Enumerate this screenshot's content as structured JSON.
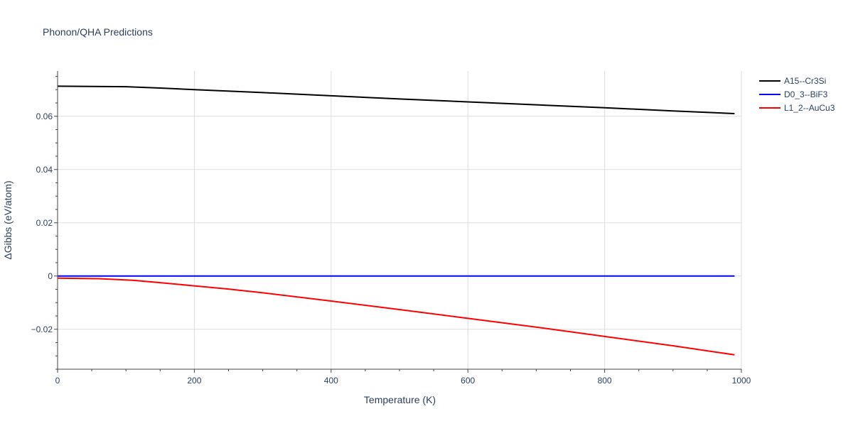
{
  "chart_data": {
    "type": "line",
    "title": "Phonon/QHA Predictions",
    "xlabel": "Temperature (K)",
    "ylabel": "ΔGibbs (eV/atom)",
    "xlim": [
      0,
      1000
    ],
    "ylim": [
      -0.035,
      0.077
    ],
    "x_ticks": [
      0,
      200,
      400,
      600,
      800,
      1000
    ],
    "y_ticks": [
      -0.02,
      0,
      0.02,
      0.04,
      0.06
    ],
    "x_tick_labels": [
      "0",
      "200",
      "400",
      "600",
      "800",
      "1000"
    ],
    "y_tick_labels": [
      "−0.02",
      "0",
      "0.02",
      "0.04",
      "0.06"
    ],
    "grid": true,
    "legend": "top-right",
    "series": [
      {
        "name": "A15--Cr3Si",
        "color": "#000000",
        "x": [
          0,
          50,
          100,
          150,
          200,
          300,
          400,
          500,
          600,
          700,
          800,
          900,
          990
        ],
        "y": [
          0.0713,
          0.0712,
          0.0711,
          0.0706,
          0.07,
          0.0689,
          0.0677,
          0.0665,
          0.0654,
          0.0643,
          0.0632,
          0.062,
          0.061
        ]
      },
      {
        "name": "D0_3--BiF3",
        "color": "#0000ff",
        "x": [
          0,
          100,
          200,
          300,
          400,
          500,
          600,
          700,
          800,
          900,
          990
        ],
        "y": [
          0,
          0,
          0,
          0,
          0,
          0,
          0,
          0,
          0,
          0,
          0
        ]
      },
      {
        "name": "L1_2--AuCu3",
        "color": "#ff0000",
        "x": [
          0,
          60,
          110,
          150,
          200,
          250,
          300,
          400,
          500,
          600,
          700,
          800,
          900,
          990
        ],
        "y": [
          -0.0008,
          -0.001,
          -0.0016,
          -0.0025,
          -0.0037,
          -0.0049,
          -0.0063,
          -0.0094,
          -0.0126,
          -0.0159,
          -0.0192,
          -0.0227,
          -0.0262,
          -0.0296
        ]
      }
    ]
  }
}
